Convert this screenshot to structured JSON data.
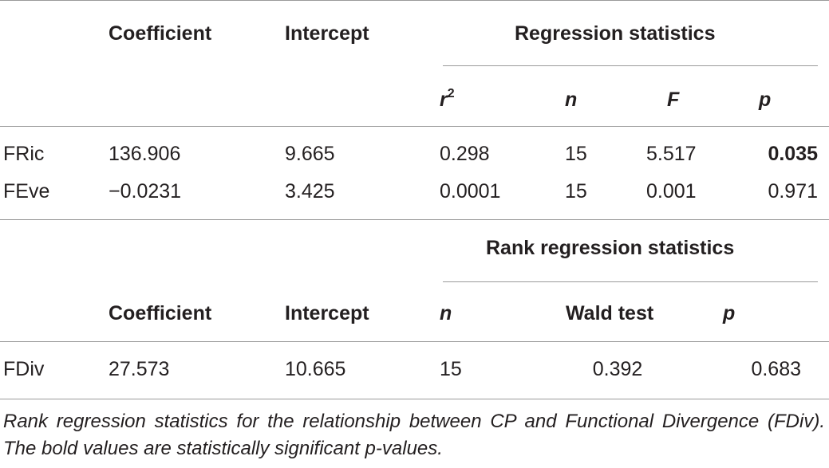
{
  "table1": {
    "headers": {
      "coefficient": "Coefficient",
      "intercept": "Intercept",
      "regression_statistics": "Regression statistics",
      "r2_base": "r",
      "r2_exp": "2",
      "n": "n",
      "F": "F",
      "p": "p"
    },
    "rows": [
      {
        "label": "FRic",
        "coefficient": "136.906",
        "intercept": "9.665",
        "r2": "0.298",
        "n": "15",
        "F": "5.517",
        "p": "0.035",
        "p_bold": true
      },
      {
        "label": "FEve",
        "coefficient": "−0.0231",
        "intercept": "3.425",
        "r2": "0.0001",
        "n": "15",
        "F": "0.001",
        "p": "0.971",
        "p_bold": false
      }
    ]
  },
  "table2": {
    "headers": {
      "rank_regression_statistics": "Rank regression statistics",
      "coefficient": "Coefficient",
      "intercept": "Intercept",
      "n": "n",
      "wald_test": "Wald test",
      "p": "p"
    },
    "rows": [
      {
        "label": "FDiv",
        "coefficient": "27.573",
        "intercept": "10.665",
        "n": "15",
        "wald": "0.392",
        "p": "0.683"
      }
    ]
  },
  "caption": "Rank regression statistics for the relationship between CP and Functional Divergence (FDiv). The bold values are statistically significant p-values."
}
